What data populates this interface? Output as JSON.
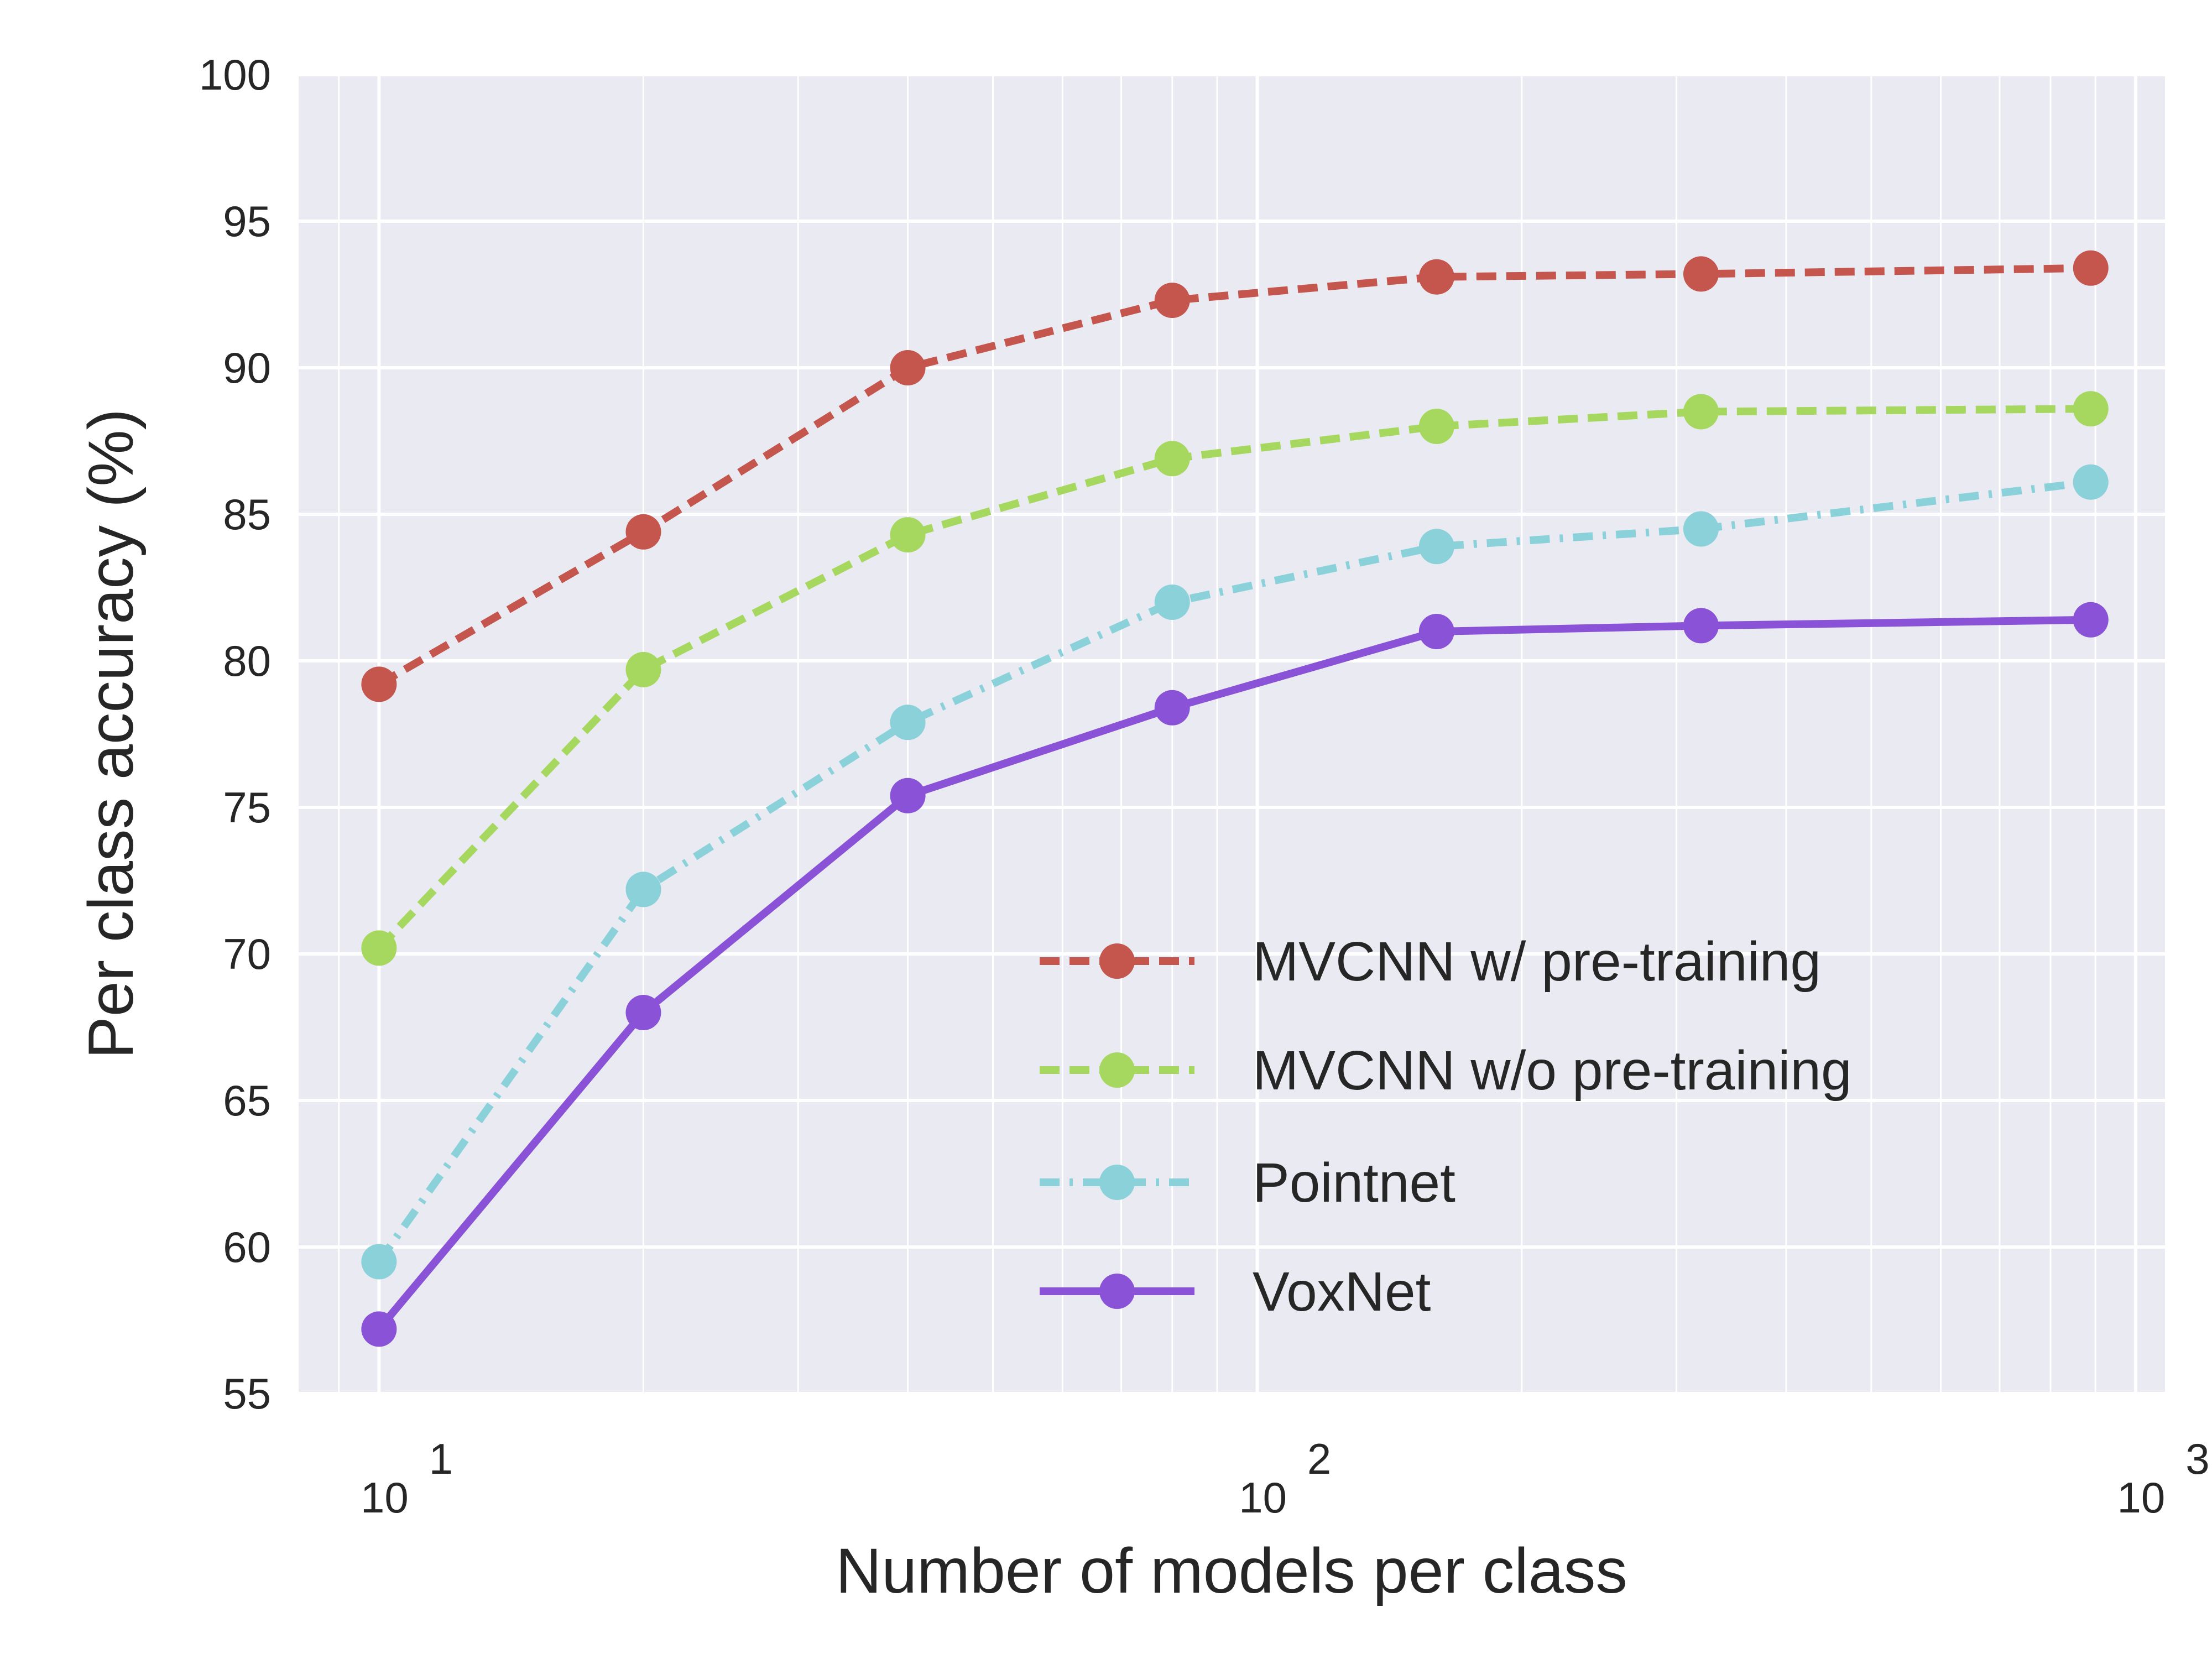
{
  "chart_data": {
    "type": "line",
    "xscale": "log",
    "xlabel": "Number of models per class",
    "ylabel": "Per class accuracy (%)",
    "xlim": [
      8.1,
      1080
    ],
    "ylim": [
      55,
      100
    ],
    "yticks": [
      55,
      60,
      65,
      70,
      75,
      80,
      85,
      90,
      95,
      100
    ],
    "ytick_labels": [
      "55",
      "60",
      "65",
      "70",
      "75",
      "80",
      "85",
      "90",
      "95",
      "100"
    ],
    "xticks": [
      {
        "value": 10,
        "base": "10",
        "exp": "1"
      },
      {
        "value": 100,
        "base": "10",
        "exp": "2"
      },
      {
        "value": 1000,
        "base": "10",
        "exp": "3"
      }
    ],
    "grid": true,
    "legend_position": "lower-right",
    "x": [
      10,
      20,
      40,
      80,
      160,
      320,
      889
    ],
    "series": [
      {
        "name": "MVCNN w/ pre-training",
        "values": [
          79.2,
          84.4,
          90.0,
          92.3,
          93.1,
          93.2,
          93.4
        ],
        "color": "#c4564e",
        "dash": "dashed"
      },
      {
        "name": "MVCNN w/o pre-training",
        "values": [
          70.2,
          79.7,
          84.3,
          86.9,
          88.0,
          88.5,
          88.6
        ],
        "color": "#a6d85f",
        "dash": "dashed"
      },
      {
        "name": "Pointnet",
        "values": [
          59.5,
          72.2,
          77.9,
          82.0,
          83.9,
          84.5,
          86.1
        ],
        "color": "#8ad1da",
        "dash": "dashdot"
      },
      {
        "name": "VoxNet",
        "values": [
          57.2,
          68.0,
          75.4,
          78.4,
          81.0,
          81.2,
          81.4
        ],
        "color": "#8a52d6",
        "dash": "solid"
      }
    ],
    "colors": {
      "plot_background": "#eaeaf2",
      "grid": "#ffffff",
      "text": "#262626"
    }
  }
}
